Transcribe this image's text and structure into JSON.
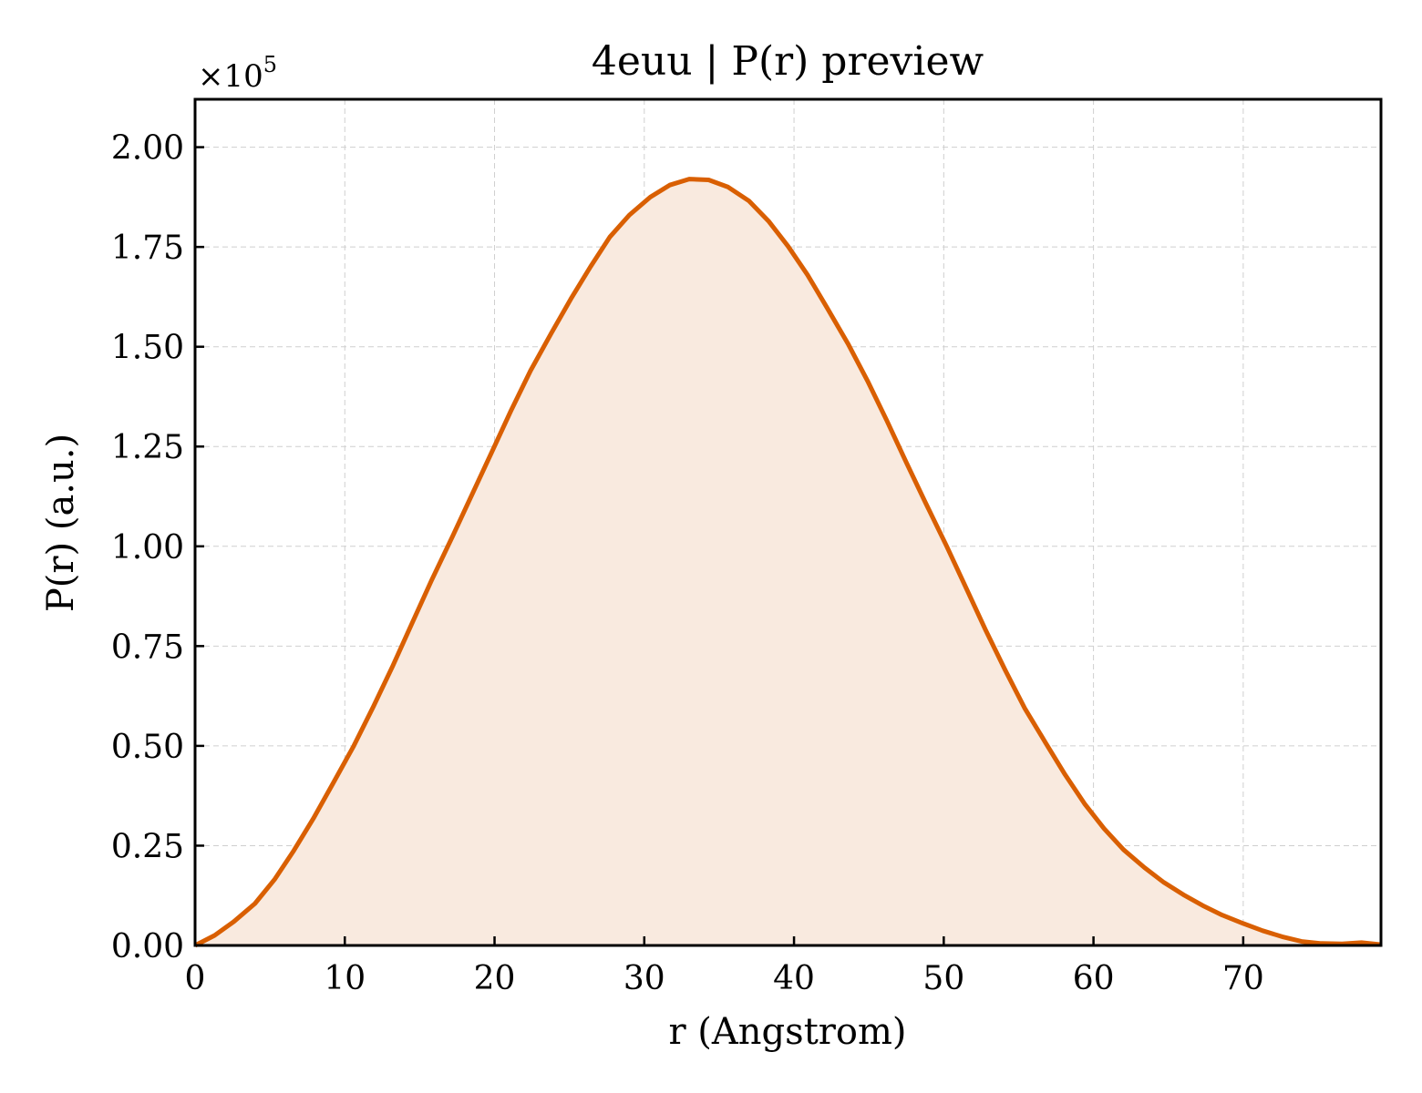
{
  "chart_data": {
    "type": "area",
    "title": "4euu | P(r) preview",
    "xlabel": "r (Angstrom)",
    "ylabel": "P(r) (a.u.)",
    "y_offset_text": "×10",
    "y_offset_exponent": "5",
    "xlim": [
      0,
      79.2
    ],
    "ylim": [
      0,
      2.12
    ],
    "xticks": [
      0,
      10,
      20,
      30,
      40,
      50,
      60,
      70
    ],
    "xtick_labels": [
      "0",
      "10",
      "20",
      "30",
      "40",
      "50",
      "60",
      "70"
    ],
    "yticks": [
      0,
      0.25,
      0.5,
      0.75,
      1.0,
      1.25,
      1.5,
      1.75,
      2.0
    ],
    "ytick_labels": [
      "0.00",
      "0.25",
      "0.50",
      "0.75",
      "1.00",
      "1.25",
      "1.50",
      "1.75",
      "2.00"
    ],
    "grid": true,
    "line_color": "#d95f02",
    "fill_color": "#f9eadf",
    "series": [
      {
        "x": [
          0,
          1.3,
          2.6,
          4,
          5.3,
          6.6,
          7.9,
          9.2,
          10.6,
          11.9,
          13.2,
          14.5,
          15.8,
          17.2,
          18.5,
          19.8,
          21.1,
          22.4,
          23.8,
          25.1,
          26.4,
          27.7,
          29,
          30.4,
          31.7,
          33,
          34.3,
          35.6,
          37,
          38.3,
          39.6,
          40.9,
          42.2,
          43.6,
          44.9,
          46.2,
          47.5,
          48.8,
          50.2,
          51.5,
          52.8,
          54.1,
          55.4,
          56.8,
          58.1,
          59.4,
          60.7,
          62,
          63.4,
          64.7,
          66,
          67.3,
          68.6,
          70,
          71.3,
          72.6,
          73.9,
          75.2,
          76.6,
          77.9,
          79.2
        ],
        "values": [
          0.0,
          0.025,
          0.06,
          0.105,
          0.165,
          0.238,
          0.318,
          0.405,
          0.5,
          0.598,
          0.7,
          0.808,
          0.915,
          1.025,
          1.13,
          1.235,
          1.34,
          1.44,
          1.535,
          1.62,
          1.7,
          1.775,
          1.83,
          1.875,
          1.905,
          1.92,
          1.918,
          1.9,
          1.865,
          1.815,
          1.752,
          1.68,
          1.598,
          1.508,
          1.415,
          1.315,
          1.21,
          1.108,
          1.0,
          0.895,
          0.79,
          0.69,
          0.595,
          0.508,
          0.428,
          0.355,
          0.293,
          0.24,
          0.195,
          0.158,
          0.127,
          0.1,
          0.076,
          0.055,
          0.037,
          0.022,
          0.01,
          0.005,
          0.004,
          0.007,
          0.002
        ]
      }
    ]
  }
}
